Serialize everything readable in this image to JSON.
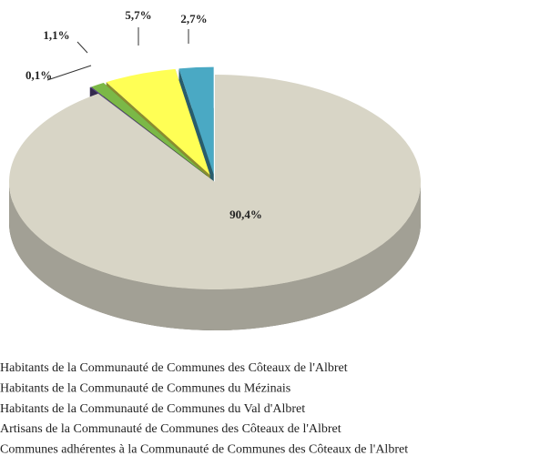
{
  "chart_data": {
    "type": "pie3d",
    "categories": [
      "Habitants de la Communauté de Communes des Côteaux de l'Albret",
      "Habitants de la Communauté de Communes du Mézinais",
      "Habitants de la Communauté de Communes du Val d'Albret",
      "Artisans de la Communauté de Communes des Côteaux de l'Albret",
      "Communes adhérentes à la Communauté de Communes des Côteaux de l'Albret"
    ],
    "values": [
      90.4,
      0.1,
      1.1,
      5.7,
      2.7
    ],
    "value_labels": [
      "90,4%",
      "0,1%",
      "1,1%",
      "5,7%",
      "2,7%"
    ],
    "colors": [
      "#d8d5c6",
      "#5e4b8c",
      "#7bb847",
      "#ffff55",
      "#4aa9c4"
    ]
  }
}
